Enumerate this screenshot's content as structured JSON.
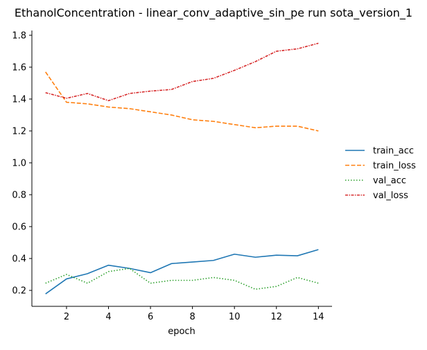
{
  "chart_data": {
    "type": "line",
    "title": "EthanolConcentration - linear_conv_adaptive_sin_pe run sota_version_1",
    "xlabel": "epoch",
    "ylabel": "",
    "xlim": [
      0.35,
      14.65
    ],
    "ylim": [
      0.1,
      1.83
    ],
    "xticks": [
      2,
      4,
      6,
      8,
      10,
      12,
      14
    ],
    "yticks": [
      0.2,
      0.4,
      0.6,
      0.8,
      1.0,
      1.2,
      1.4,
      1.6,
      1.8
    ],
    "ytick_labels": [
      "0.2",
      "0.4",
      "0.6",
      "0.8",
      "1.0",
      "1.2",
      "1.4",
      "1.6",
      "1.8"
    ],
    "grid": false,
    "legend_position": "right-outside",
    "x": [
      1,
      2,
      3,
      4,
      5,
      6,
      7,
      8,
      9,
      10,
      11,
      12,
      13,
      14
    ],
    "series": [
      {
        "name": "train_acc",
        "color": "#1f77b4",
        "dash": "solid",
        "values": [
          0.178,
          0.272,
          0.305,
          0.358,
          0.338,
          0.311,
          0.368,
          0.378,
          0.388,
          0.427,
          0.408,
          0.421,
          0.417,
          0.456
        ]
      },
      {
        "name": "train_loss",
        "color": "#ff7f0e",
        "dash": "dashed",
        "values": [
          1.57,
          1.38,
          1.37,
          1.35,
          1.34,
          1.32,
          1.3,
          1.27,
          1.26,
          1.24,
          1.22,
          1.23,
          1.23,
          1.2
        ]
      },
      {
        "name": "val_acc",
        "color": "#2ca02c",
        "dash": "dotted",
        "values": [
          0.245,
          0.3,
          0.245,
          0.318,
          0.338,
          0.245,
          0.263,
          0.263,
          0.281,
          0.263,
          0.207,
          0.225,
          0.281,
          0.245
        ]
      },
      {
        "name": "val_loss",
        "color": "#d62728",
        "dash": "dashdot",
        "values": [
          1.44,
          1.405,
          1.435,
          1.39,
          1.435,
          1.45,
          1.46,
          1.51,
          1.53,
          1.58,
          1.635,
          1.7,
          1.715,
          1.75
        ]
      }
    ]
  }
}
